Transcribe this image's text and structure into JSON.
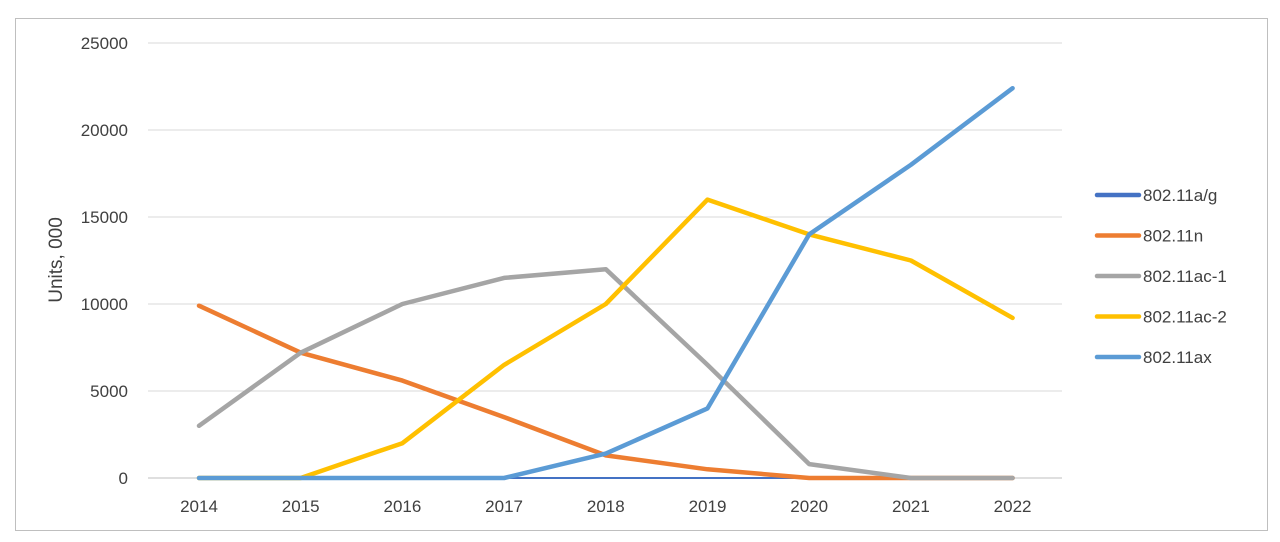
{
  "chart_data": {
    "type": "line",
    "title": "",
    "xlabel": "",
    "ylabel": "Units, 000",
    "ylim": [
      0,
      25000
    ],
    "yticks": [
      "0",
      "5000",
      "10000",
      "15000",
      "20000",
      "25000"
    ],
    "categories": [
      "2014",
      "2015",
      "2016",
      "2017",
      "2018",
      "2019",
      "2020",
      "2021",
      "2022"
    ],
    "grid": true,
    "legend_position": "right",
    "series": [
      {
        "name": "802.11a/g",
        "color": "#4472C4",
        "values": [
          0,
          0,
          0,
          0,
          0,
          0,
          0,
          0,
          0
        ]
      },
      {
        "name": "802.11n",
        "color": "#ED7D31",
        "values": [
          9900,
          7200,
          5600,
          3500,
          1300,
          500,
          0,
          0,
          0
        ]
      },
      {
        "name": "802.11ac-1",
        "color": "#A5A5A5",
        "values": [
          3000,
          7200,
          10000,
          11500,
          12000,
          6500,
          800,
          0,
          0
        ]
      },
      {
        "name": "802.11ac-2",
        "color": "#FFC000",
        "values": [
          0,
          0,
          2000,
          6500,
          10000,
          16000,
          14000,
          12500,
          9200
        ]
      },
      {
        "name": "802.11ax",
        "color": "#5B9BD5",
        "values": [
          0,
          0,
          0,
          0,
          1400,
          4000,
          14000,
          18000,
          22400
        ]
      }
    ]
  }
}
